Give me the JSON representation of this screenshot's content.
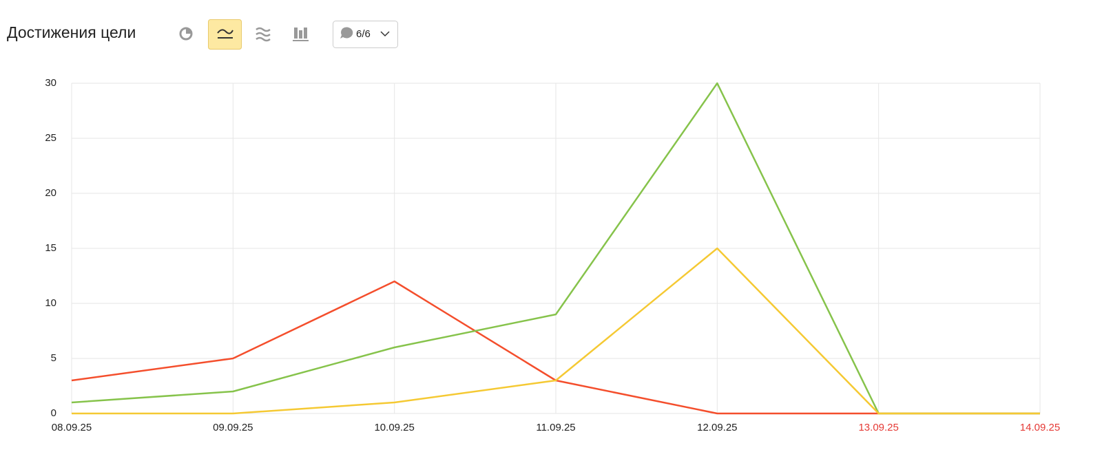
{
  "chart_data": {
    "type": "line",
    "title": "Достижения цели",
    "categories": [
      "08.09.25",
      "09.09.25",
      "10.09.25",
      "11.09.25",
      "12.09.25",
      "13.09.25",
      "14.09.25"
    ],
    "category_colors": [
      "#222222",
      "#222222",
      "#222222",
      "#222222",
      "#222222",
      "#e53935",
      "#e53935"
    ],
    "series": [
      {
        "color": "#f44e2c",
        "values": [
          3,
          5,
          12,
          3,
          0,
          0,
          0
        ]
      },
      {
        "color": "#86c34b",
        "values": [
          1,
          2,
          6,
          9,
          30,
          0,
          0
        ]
      },
      {
        "color": "#f5c933",
        "values": [
          0,
          0,
          1,
          3,
          15,
          0,
          0
        ]
      }
    ],
    "ylim": [
      0,
      30
    ],
    "yticks": [
      0,
      5,
      10,
      15,
      20,
      25,
      30
    ],
    "grid": true
  },
  "toolbar": {
    "series_counter": "6/6"
  }
}
